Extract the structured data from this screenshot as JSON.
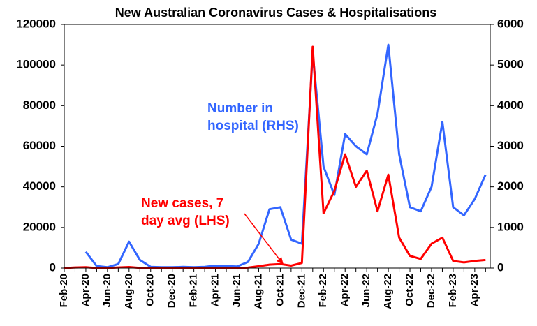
{
  "chart_data": {
    "type": "line",
    "title": "New Australian Coronavirus Cases & Hospitalisations",
    "categories": [
      "Feb-20",
      null,
      "Apr-20",
      null,
      "Jun-20",
      null,
      "Aug-20",
      null,
      "Oct-20",
      null,
      "Dec-20",
      null,
      "Feb-21",
      null,
      "Apr-21",
      null,
      "Jun-21",
      null,
      "Aug-21",
      null,
      "Oct-21",
      null,
      "Dec-21",
      null,
      "Feb-22",
      null,
      "Apr-22",
      null,
      "Jun-22",
      null,
      "Aug-22",
      null,
      "Oct-22",
      null,
      "Dec-22",
      null,
      "Feb-23",
      null,
      "Apr-23",
      null
    ],
    "series": [
      {
        "name": "New cases, 7 day avg (LHS)",
        "color": "#ff0000",
        "axis": "y",
        "values": [
          0,
          300,
          400,
          50,
          20,
          300,
          500,
          100,
          20,
          10,
          20,
          10,
          10,
          10,
          10,
          10,
          50,
          200,
          900,
          1700,
          2000,
          1200,
          2500,
          109000,
          27000,
          38000,
          56000,
          40000,
          48000,
          28000,
          46000,
          15000,
          6000,
          4500,
          12000,
          15000,
          3500,
          2800,
          3500,
          4000
        ]
      },
      {
        "name": "Number in hospital (RHS)",
        "color": "#3366ff",
        "axis": "y2",
        "values": [
          null,
          null,
          400,
          50,
          20,
          100,
          650,
          200,
          30,
          20,
          20,
          30,
          20,
          30,
          60,
          50,
          40,
          150,
          600,
          1450,
          1500,
          700,
          600,
          5300,
          2500,
          1800,
          3300,
          3000,
          2800,
          3800,
          5500,
          2800,
          1500,
          1400,
          2000,
          3600,
          1500,
          1300,
          1700,
          2300
        ]
      }
    ],
    "annotations": [
      {
        "lines": [
          "Number in",
          "hospital (RHS)"
        ],
        "color": "#3366ff"
      },
      {
        "lines": [
          "New cases, 7",
          "day avg (LHS)"
        ],
        "color": "#ff0000"
      }
    ],
    "ylim": [
      0,
      120000
    ],
    "yticks": [
      0,
      20000,
      40000,
      60000,
      80000,
      100000,
      120000
    ],
    "y2lim": [
      0,
      6000
    ],
    "y2ticks": [
      0,
      1000,
      2000,
      3000,
      4000,
      5000,
      6000
    ]
  }
}
